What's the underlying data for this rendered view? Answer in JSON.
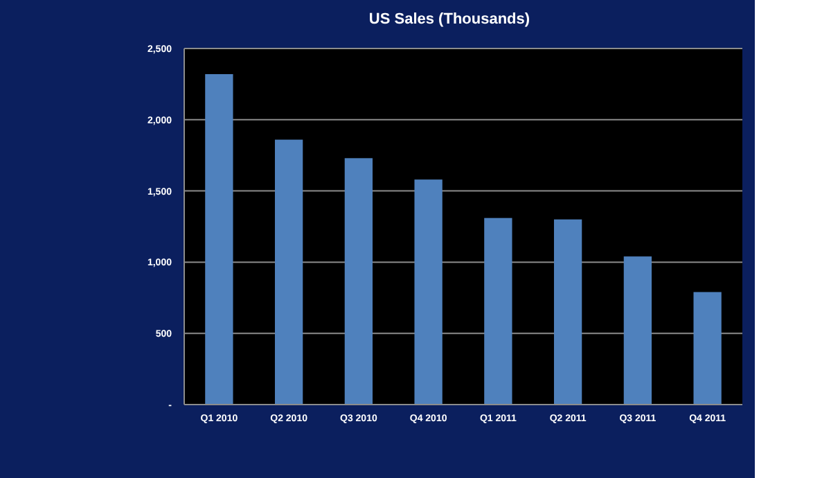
{
  "chart_data": {
    "type": "bar",
    "title": "US Sales (Thousands)",
    "categories": [
      "Q1 2010",
      "Q2 2010",
      "Q3 2010",
      "Q4 2010",
      "Q1 2011",
      "Q2 2011",
      "Q3 2011",
      "Q4 2011"
    ],
    "values": [
      2320,
      1860,
      1730,
      1580,
      1310,
      1300,
      1040,
      790
    ],
    "color": "#4f81bd",
    "ylim": [
      0,
      2500
    ],
    "yticks": [
      {
        "value": 0,
        "label": "-"
      },
      {
        "value": 500,
        "label": "500"
      },
      {
        "value": 1000,
        "label": "1,000"
      },
      {
        "value": 1500,
        "label": "1,500"
      },
      {
        "value": 2000,
        "label": "2,000"
      },
      {
        "value": 2500,
        "label": "2,500"
      }
    ],
    "grid": "y"
  }
}
